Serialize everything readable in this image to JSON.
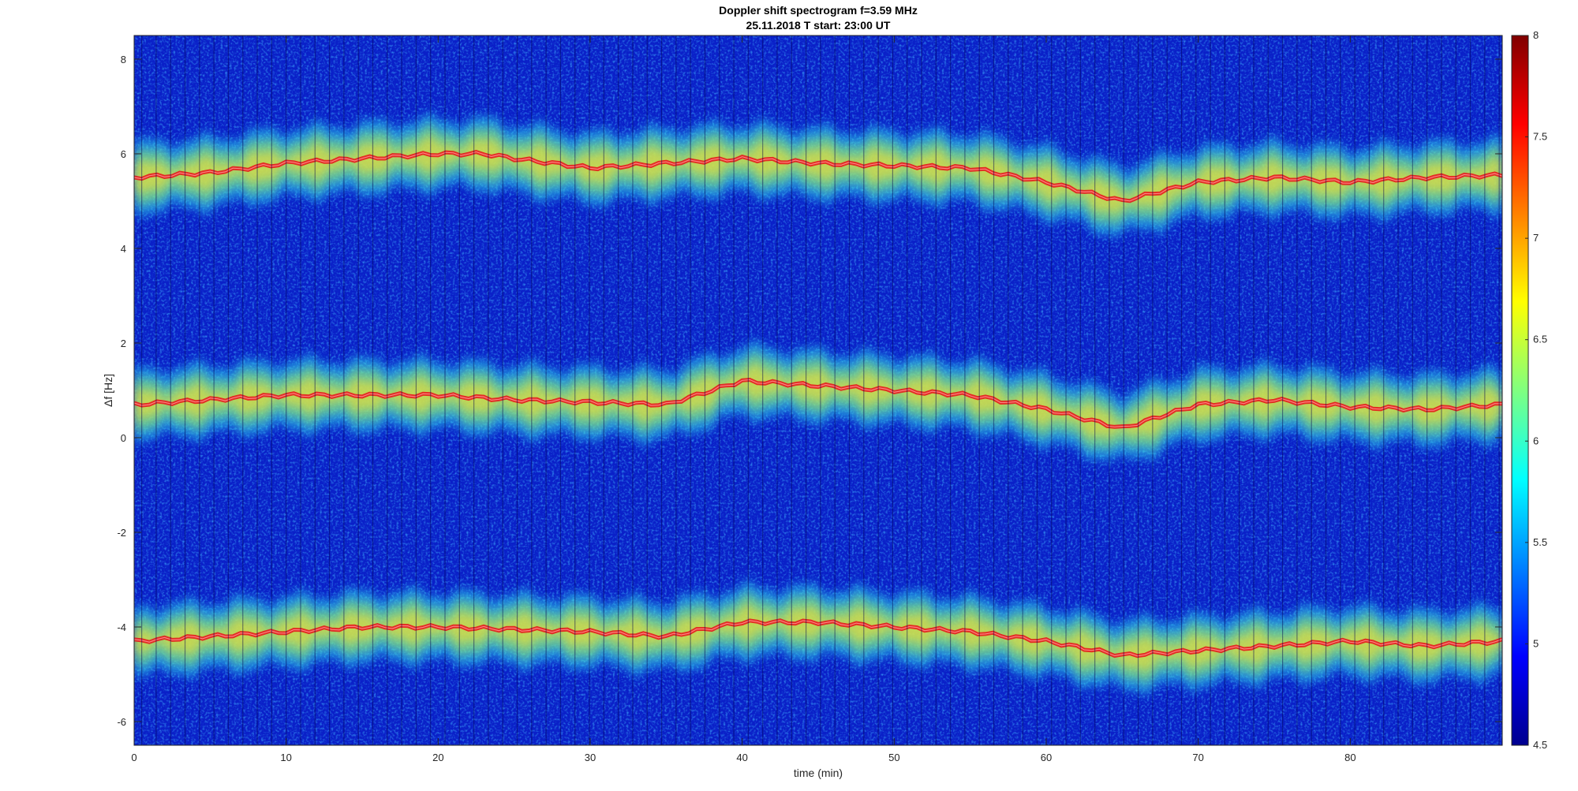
{
  "chart_data": {
    "type": "heatmap",
    "title": "Doppler shift spectrogram f=3.59 MHz",
    "subtitle": "25.11.2018   T start: 23:00 UT",
    "xlabel": "time (min)",
    "ylabel": "Δf [Hz]",
    "xlim": [
      0,
      90
    ],
    "ylim": [
      -6.5,
      8.5
    ],
    "xticks": [
      0,
      10,
      20,
      30,
      40,
      50,
      60,
      70,
      80
    ],
    "yticks": [
      -6,
      -4,
      -2,
      0,
      2,
      4,
      6,
      8
    ],
    "colorbar": {
      "colormap": "jet",
      "range": [
        4.5,
        8
      ],
      "ticks": [
        4.5,
        5,
        5.5,
        6,
        6.5,
        7,
        7.5,
        8
      ]
    },
    "series": [
      {
        "x": [
          0,
          5,
          10,
          15,
          20,
          23,
          25,
          30,
          35,
          40,
          45,
          50,
          55,
          60,
          65,
          70,
          75,
          80,
          85,
          90
        ],
        "values": [
          5.5,
          5.6,
          5.8,
          5.9,
          6.0,
          6.0,
          5.9,
          5.7,
          5.8,
          5.9,
          5.8,
          5.75,
          5.7,
          5.4,
          5.0,
          5.4,
          5.5,
          5.4,
          5.5,
          5.55
        ]
      },
      {
        "x": [
          0,
          5,
          10,
          15,
          20,
          25,
          30,
          35,
          40,
          45,
          50,
          55,
          60,
          65,
          70,
          75,
          80,
          85,
          90
        ],
        "values": [
          0.7,
          0.8,
          0.9,
          0.9,
          0.9,
          0.8,
          0.75,
          0.7,
          1.2,
          1.1,
          1.0,
          0.9,
          0.6,
          0.2,
          0.7,
          0.8,
          0.65,
          0.6,
          0.7
        ]
      },
      {
        "x": [
          0,
          5,
          10,
          15,
          20,
          25,
          30,
          35,
          40,
          45,
          50,
          55,
          60,
          65,
          70,
          75,
          80,
          85,
          90
        ],
        "values": [
          -4.3,
          -4.2,
          -4.1,
          -4.0,
          -4.0,
          -4.05,
          -4.1,
          -4.2,
          -3.9,
          -3.9,
          -4.0,
          -4.1,
          -4.3,
          -4.6,
          -4.5,
          -4.4,
          -4.3,
          -4.4,
          -4.3
        ]
      }
    ],
    "grid": false
  }
}
